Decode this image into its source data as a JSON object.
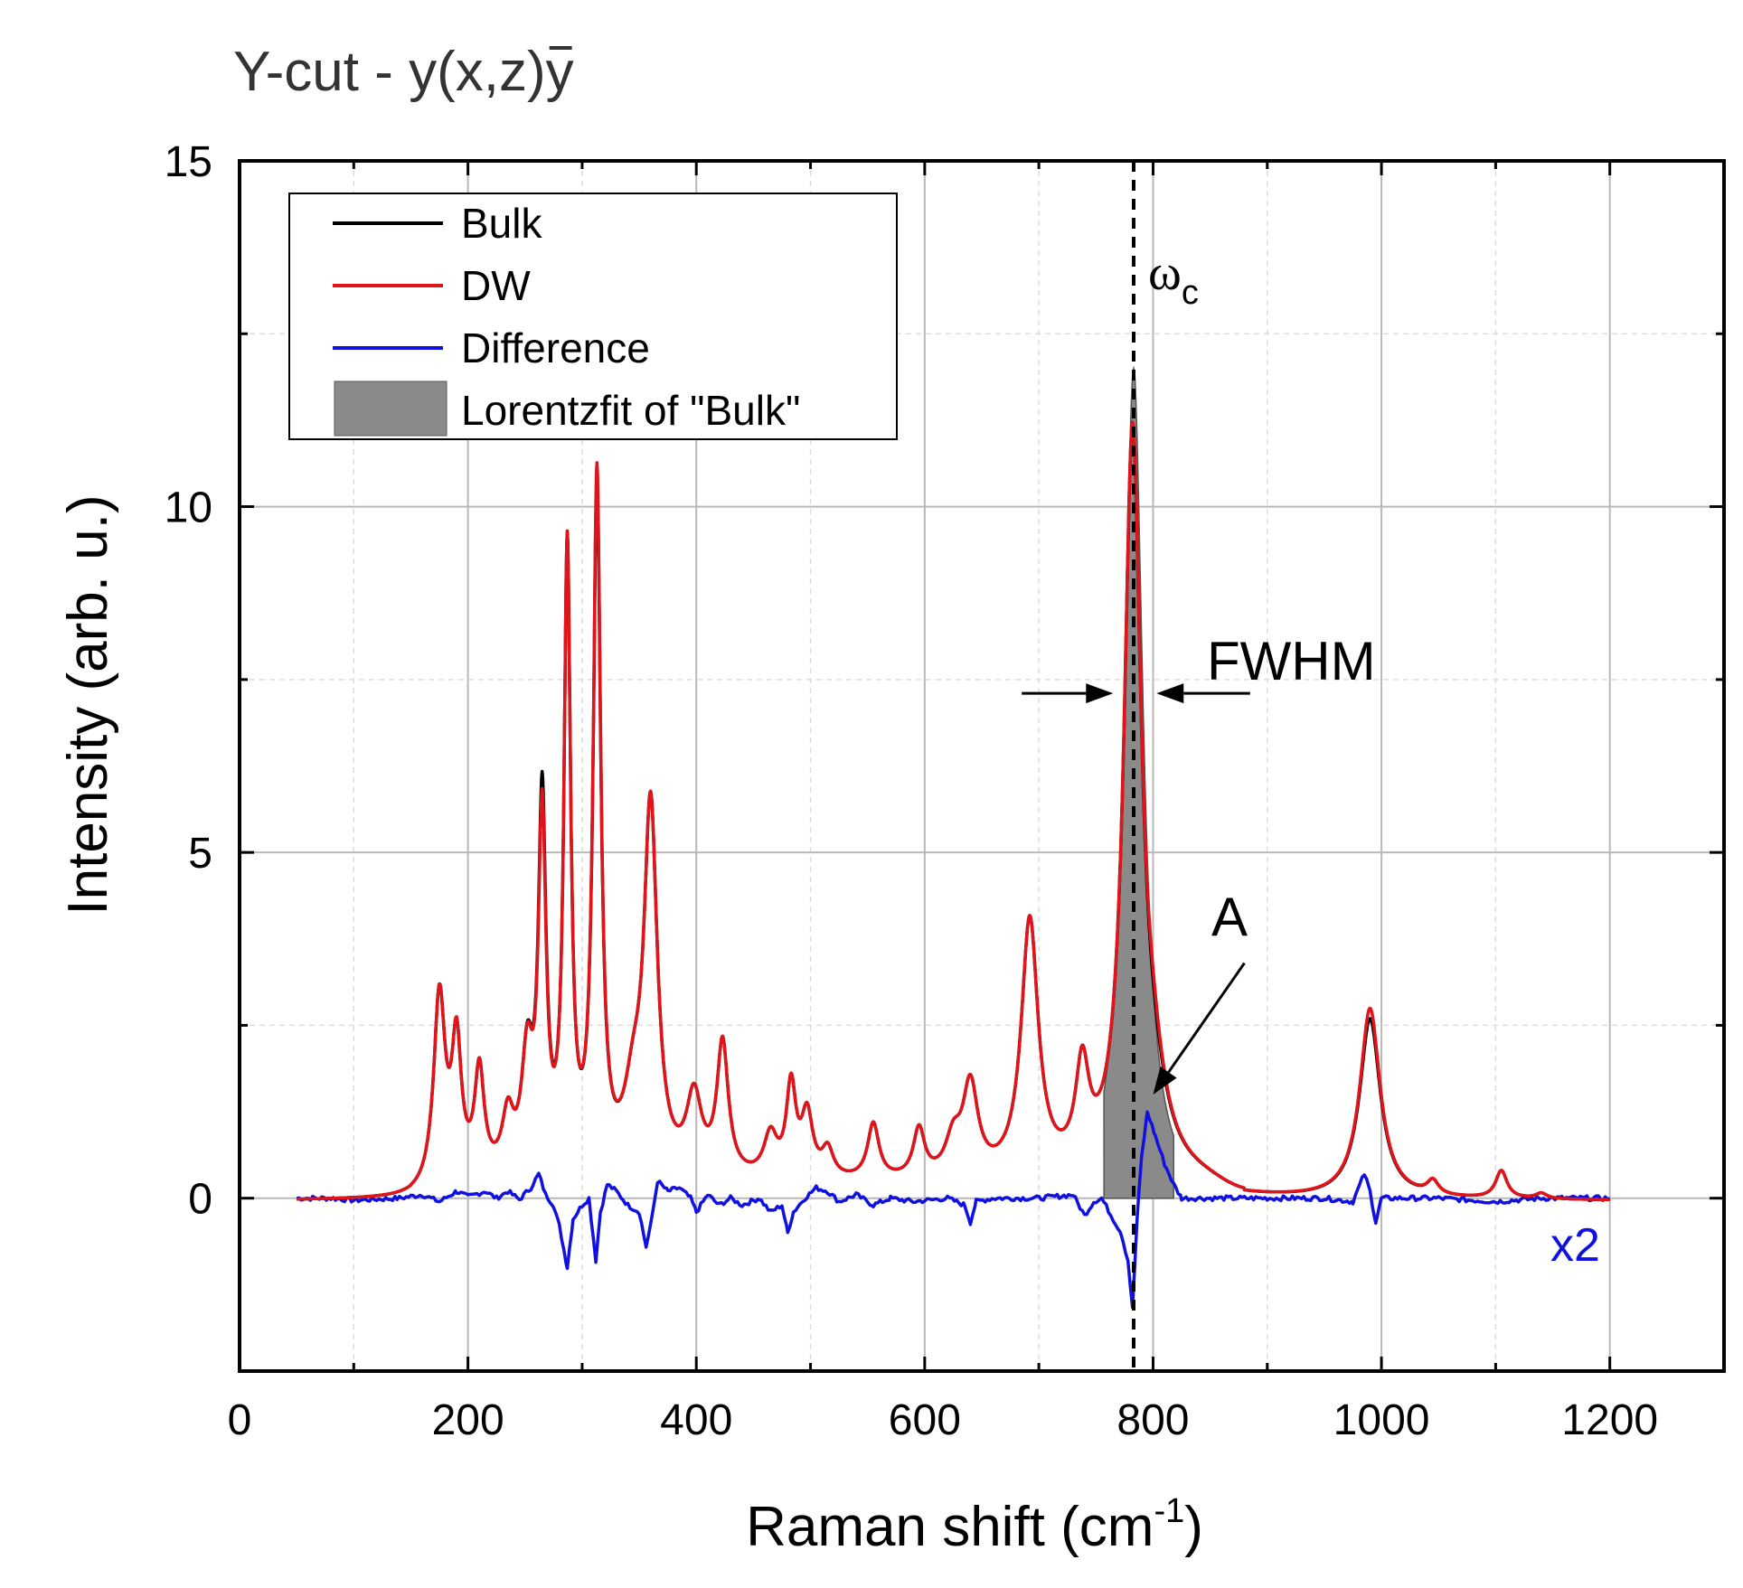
{
  "chart_data": {
    "type": "line",
    "title": "Y-cut - y(x,z)ȳ",
    "title_parts": {
      "prefix": "Y-cut - y(x,z)",
      "bar_letter": "y"
    },
    "xlabel": "Raman shift (cm",
    "xlabel_sup": "-1",
    "xlabel_suffix": ")",
    "ylabel": "Intensity (arb. u.)",
    "xlim": [
      0,
      1300
    ],
    "ylim": [
      -2.5,
      15
    ],
    "xticks": [
      0,
      200,
      400,
      600,
      800,
      1000,
      1200
    ],
    "yticks": [
      0,
      5,
      10,
      15
    ],
    "grid": true,
    "legend_position": "top-left",
    "colors": {
      "bulk": "#000000",
      "dw": "#e0141b",
      "difference": "#1010e0",
      "lorentz_fill": "#8a8a8a"
    },
    "legend": [
      {
        "label": "Bulk",
        "kind": "line",
        "color": "#000000"
      },
      {
        "label": "DW",
        "kind": "line",
        "color": "#e0141b"
      },
      {
        "label": "Difference",
        "kind": "line",
        "color": "#1010e0"
      },
      {
        "label": "Lorentzfit of \"Bulk\"",
        "kind": "fill",
        "color": "#8a8a8a"
      }
    ],
    "baseline_x": [
      50,
      1200
    ],
    "peaks": [
      {
        "x": 175,
        "h": 2.7,
        "w": 6
      },
      {
        "x": 190,
        "h": 1.9,
        "w": 5
      },
      {
        "x": 210,
        "h": 1.5,
        "w": 5
      },
      {
        "x": 235,
        "h": 0.8,
        "w": 6
      },
      {
        "x": 252,
        "h": 1.6,
        "w": 6
      },
      {
        "x": 265,
        "h": 5.3,
        "w": 4
      },
      {
        "x": 287,
        "h": 8.9,
        "w": 3.5
      },
      {
        "x": 313,
        "h": 9.8,
        "w": 4
      },
      {
        "x": 345,
        "h": 1.0,
        "w": 10
      },
      {
        "x": 360,
        "h": 5.2,
        "w": 7
      },
      {
        "x": 398,
        "h": 1.1,
        "w": 8
      },
      {
        "x": 423,
        "h": 1.9,
        "w": 6
      },
      {
        "x": 465,
        "h": 0.6,
        "w": 7
      },
      {
        "x": 483,
        "h": 1.3,
        "w": 5
      },
      {
        "x": 497,
        "h": 0.9,
        "w": 6
      },
      {
        "x": 515,
        "h": 0.4,
        "w": 6
      },
      {
        "x": 555,
        "h": 0.8,
        "w": 6
      },
      {
        "x": 595,
        "h": 0.7,
        "w": 6
      },
      {
        "x": 625,
        "h": 0.5,
        "w": 8
      },
      {
        "x": 640,
        "h": 1.3,
        "w": 8
      },
      {
        "x": 692,
        "h": 3.7,
        "w": 9
      },
      {
        "x": 738,
        "h": 1.4,
        "w": 7
      },
      {
        "x": 782,
        "h": 10.6,
        "w": 9
      },
      {
        "x": 800,
        "h": 0.8,
        "w": 15
      },
      {
        "x": 990,
        "h": 2.6,
        "w": 11
      },
      {
        "x": 1045,
        "h": 0.2,
        "w": 6
      },
      {
        "x": 1105,
        "h": 0.4,
        "w": 6
      },
      {
        "x": 1140,
        "h": 0.08,
        "w": 6
      }
    ],
    "dw_minus_bulk": [
      {
        "x": 265,
        "h": -0.25,
        "w": 4
      },
      {
        "x": 313,
        "h": 0.2,
        "w": 4
      },
      {
        "x": 800,
        "h": 0.15,
        "w": 8
      },
      {
        "x": 990,
        "h": 0.15,
        "w": 8
      }
    ],
    "difference": {
      "scale_label": "x2",
      "points": [
        [
          50,
          0.0
        ],
        [
          80,
          0.0
        ],
        [
          100,
          -0.03
        ],
        [
          140,
          0.0
        ],
        [
          160,
          0.05
        ],
        [
          175,
          -0.05
        ],
        [
          190,
          0.1
        ],
        [
          200,
          0.02
        ],
        [
          215,
          0.1
        ],
        [
          225,
          0.0
        ],
        [
          235,
          0.1
        ],
        [
          245,
          -0.02
        ],
        [
          255,
          0.15
        ],
        [
          262,
          0.35
        ],
        [
          268,
          0.05
        ],
        [
          275,
          -0.1
        ],
        [
          280,
          -0.4
        ],
        [
          287,
          -1.0
        ],
        [
          292,
          -0.3
        ],
        [
          300,
          -0.1
        ],
        [
          306,
          0.0
        ],
        [
          312,
          -0.9
        ],
        [
          316,
          -0.2
        ],
        [
          322,
          0.2
        ],
        [
          330,
          0.1
        ],
        [
          340,
          -0.1
        ],
        [
          350,
          -0.2
        ],
        [
          356,
          -0.7
        ],
        [
          360,
          -0.4
        ],
        [
          366,
          0.25
        ],
        [
          375,
          0.1
        ],
        [
          385,
          0.15
        ],
        [
          395,
          0.0
        ],
        [
          400,
          -0.2
        ],
        [
          410,
          0.05
        ],
        [
          420,
          -0.1
        ],
        [
          430,
          0.0
        ],
        [
          440,
          -0.1
        ],
        [
          455,
          0.0
        ],
        [
          465,
          -0.2
        ],
        [
          475,
          -0.1
        ],
        [
          480,
          -0.5
        ],
        [
          485,
          -0.2
        ],
        [
          495,
          0.0
        ],
        [
          505,
          0.15
        ],
        [
          515,
          0.1
        ],
        [
          525,
          -0.05
        ],
        [
          540,
          0.05
        ],
        [
          555,
          -0.1
        ],
        [
          570,
          0.0
        ],
        [
          590,
          -0.05
        ],
        [
          620,
          0.0
        ],
        [
          635,
          -0.1
        ],
        [
          640,
          -0.35
        ],
        [
          645,
          -0.05
        ],
        [
          660,
          0.0
        ],
        [
          700,
          0.0
        ],
        [
          730,
          0.05
        ],
        [
          740,
          -0.25
        ],
        [
          748,
          -0.05
        ],
        [
          755,
          0.0
        ],
        [
          765,
          -0.3
        ],
        [
          772,
          -0.5
        ],
        [
          778,
          -0.9
        ],
        [
          782,
          -1.6
        ],
        [
          786,
          -0.3
        ],
        [
          790,
          0.6
        ],
        [
          795,
          1.25
        ],
        [
          802,
          0.9
        ],
        [
          810,
          0.5
        ],
        [
          818,
          0.2
        ],
        [
          825,
          0.0
        ],
        [
          850,
          0.0
        ],
        [
          900,
          0.0
        ],
        [
          950,
          0.0
        ],
        [
          975,
          -0.05
        ],
        [
          985,
          0.35
        ],
        [
          990,
          0.1
        ],
        [
          995,
          -0.35
        ],
        [
          1000,
          0.0
        ],
        [
          1050,
          0.0
        ],
        [
          1100,
          -0.05
        ],
        [
          1140,
          0.0
        ],
        [
          1200,
          0.0
        ]
      ]
    },
    "lorentz_fit": {
      "center": 783,
      "amplitude": 12.0,
      "half_width": 10,
      "x_range": [
        757,
        818
      ]
    },
    "omega_c_x": 783,
    "annotations": {
      "omega_label": "ω",
      "omega_sub": "c",
      "fwhm_label": "FWHM",
      "fwhm_arrows": {
        "left_from": 685,
        "left_to": 765,
        "right_from": 885,
        "right_to": 803,
        "y": 7.3
      },
      "a_label": "A",
      "a_arrow": {
        "from_x": 880,
        "from_y": 3.4,
        "to_x": 800,
        "to_y": 1.5
      }
    }
  }
}
